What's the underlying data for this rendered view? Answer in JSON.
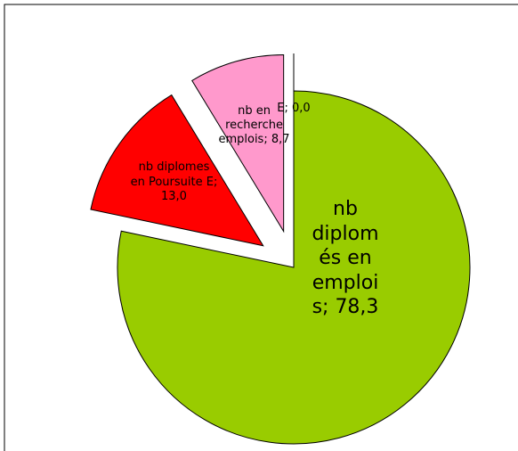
{
  "chart_data": {
    "type": "pie",
    "categories": [
      "nb diplomés en emplois",
      "nb diplomes en Poursuite E",
      "nb en recherche emplois",
      "E"
    ],
    "values": [
      78.3,
      13.0,
      8.7,
      0.0
    ],
    "value_labels": [
      "78,3",
      "13,0",
      "8,7",
      "0,0"
    ],
    "label_separator": "; ",
    "colors": [
      "#99cc00",
      "#ff0000",
      "#ff99cc",
      "#ffffff"
    ],
    "exploded": [
      false,
      true,
      true,
      true
    ]
  }
}
